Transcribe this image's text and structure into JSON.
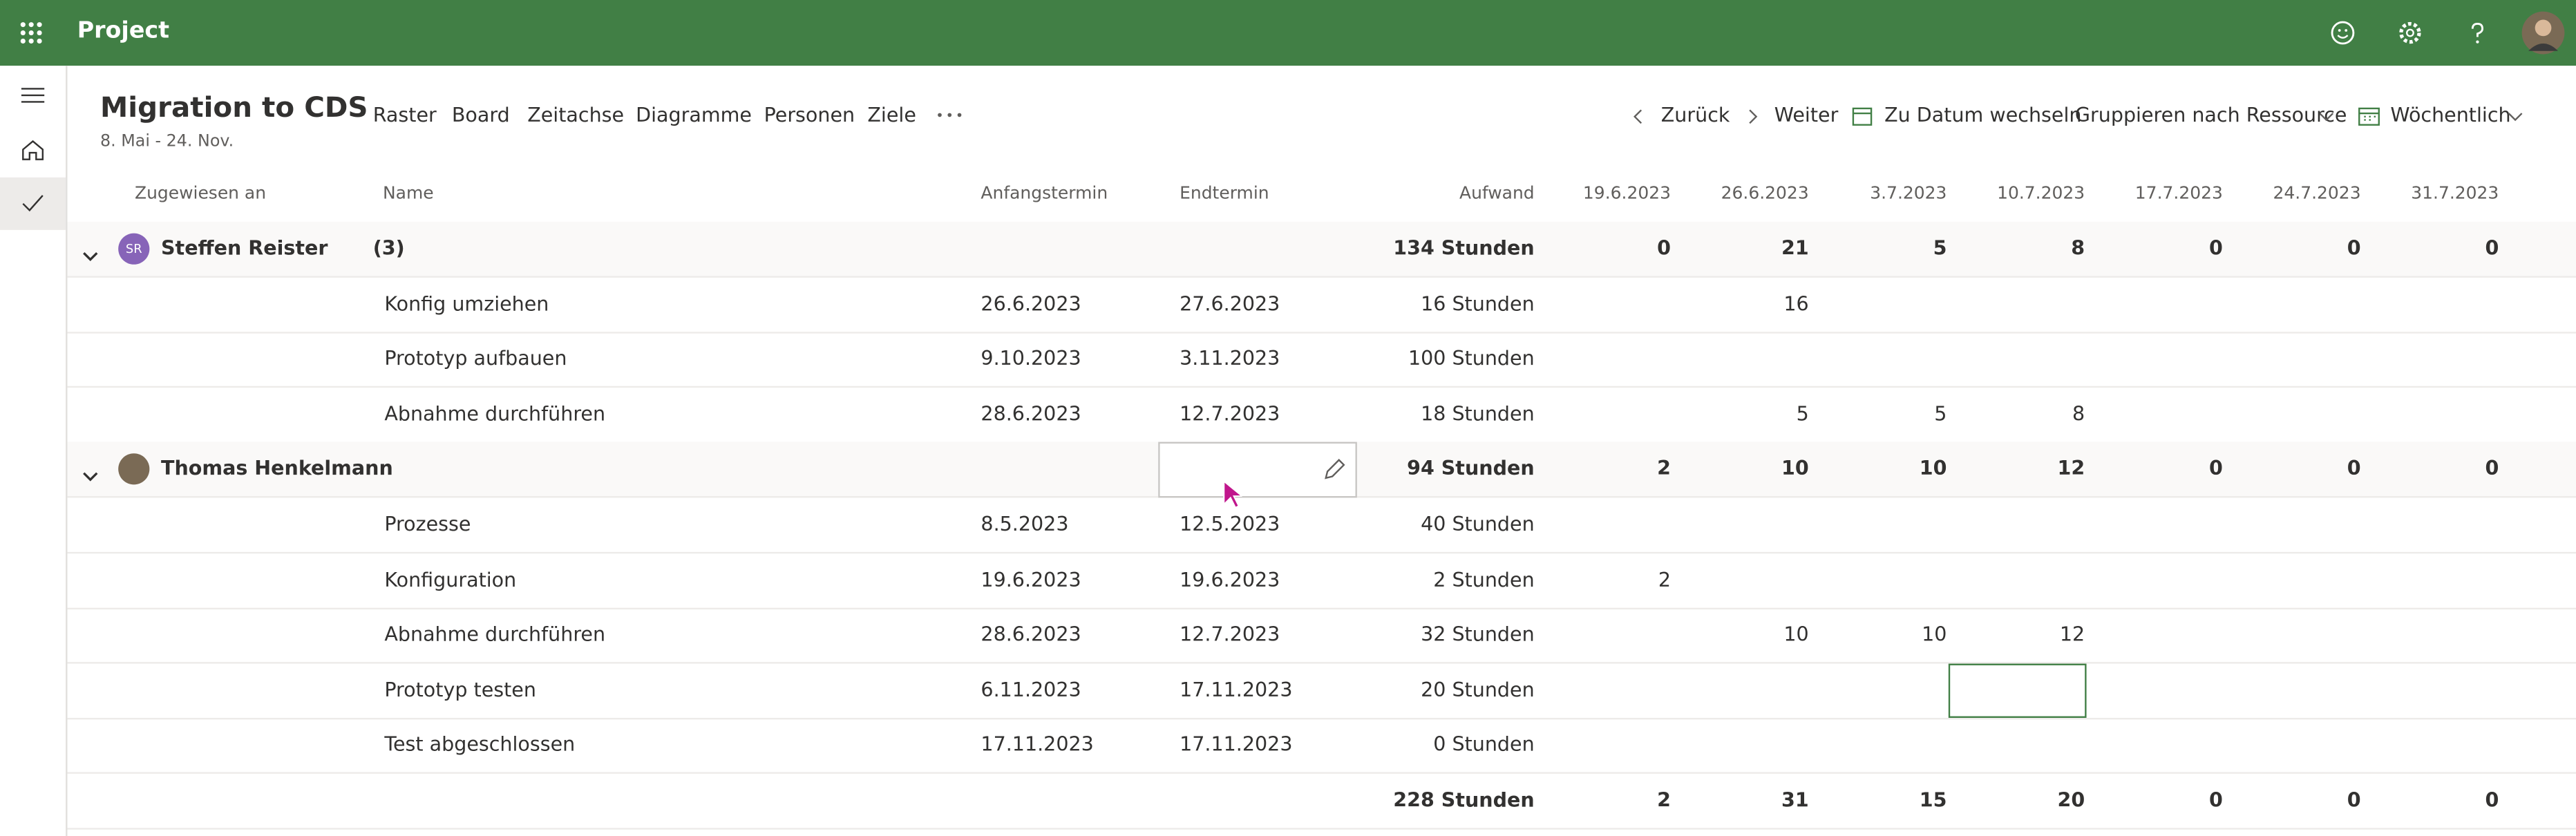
{
  "app": {
    "name": "Project"
  },
  "project": {
    "title": "Migration to CDS",
    "dates": "8. Mai - 24. Nov."
  },
  "tabs": [
    "Raster",
    "Board",
    "Zeitachse",
    "Diagramme",
    "Personen",
    "Ziele"
  ],
  "actions": [
    "Zurück",
    "Weiter",
    "Zu Datum wechseln",
    "Gruppieren nach Ressource",
    "Wöchentlich"
  ],
  "columns": {
    "assigned": "Zugewiesen an",
    "name": "Name",
    "start": "Anfangstermin",
    "end": "Endtermin",
    "effort": "Aufwand",
    "weeks": [
      "19.6.2023",
      "26.6.2023",
      "3.7.2023",
      "10.7.2023",
      "17.7.2023",
      "24.7.2023",
      "31.7.2023"
    ]
  },
  "groups": [
    {
      "initials": "SR",
      "name": "Steffen Reister",
      "count": "(3)",
      "effort": "134 Stunden",
      "weeks": [
        0,
        21,
        5,
        8,
        0,
        0,
        0
      ],
      "rows": [
        {
          "name": "Konfig umziehen",
          "start": "26.6.2023",
          "end": "27.6.2023",
          "effort": "16 Stunden",
          "weeks": [
            null,
            16,
            null,
            null,
            null,
            null,
            null
          ]
        },
        {
          "name": "Prototyp aufbauen",
          "start": "9.10.2023",
          "end": "3.11.2023",
          "effort": "100 Stunden",
          "weeks": [
            null,
            null,
            null,
            null,
            null,
            null,
            null
          ]
        },
        {
          "name": "Abnahme durchführen",
          "start": "28.6.2023",
          "end": "12.7.2023",
          "effort": "18 Stunden",
          "weeks": [
            null,
            5,
            5,
            8,
            null,
            null,
            null
          ]
        }
      ]
    },
    {
      "name": "Thomas Henkelmann",
      "effort": "94 Stunden",
      "weeks": [
        2,
        10,
        10,
        12,
        0,
        0,
        0
      ],
      "rows": [
        {
          "name": "Prozesse",
          "start": "8.5.2023",
          "end": "12.5.2023",
          "effort": "40 Stunden",
          "weeks": [
            null,
            null,
            null,
            null,
            null,
            null,
            null
          ]
        },
        {
          "name": "Konfiguration",
          "start": "19.6.2023",
          "end": "19.6.2023",
          "effort": "2 Stunden",
          "weeks": [
            2,
            null,
            null,
            null,
            null,
            null,
            null
          ]
        },
        {
          "name": "Abnahme durchführen",
          "start": "28.6.2023",
          "end": "12.7.2023",
          "effort": "32 Stunden",
          "weeks": [
            null,
            10,
            10,
            12,
            null,
            null,
            null
          ]
        },
        {
          "name": "Prototyp testen",
          "start": "6.11.2023",
          "end": "17.11.2023",
          "effort": "20 Stunden",
          "weeks": [
            null,
            null,
            null,
            null,
            null,
            null,
            null
          ]
        },
        {
          "name": "Test abgeschlossen",
          "start": "17.11.2023",
          "end": "17.11.2023",
          "effort": "0 Stunden",
          "weeks": [
            null,
            null,
            null,
            null,
            null,
            null,
            null
          ]
        }
      ]
    }
  ],
  "totals": {
    "effort": "228 Stunden",
    "weeks": [
      2,
      31,
      15,
      20,
      0,
      0,
      0
    ]
  }
}
